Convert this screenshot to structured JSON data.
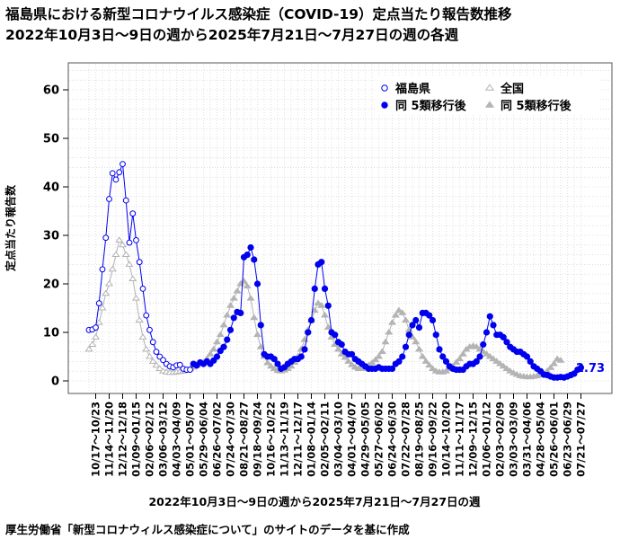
{
  "title_line1": "福島県における新型コロナウイルス感染症（COVID-19）定点当たり報告数推移",
  "title_line2": "2022年10月3日～9日の週から2025年7月21日～7月27日の週の各週",
  "source": "厚生労働省「新型コロナウィルス感染症について」のサイトのデータを基に作成",
  "colors": {
    "fukushima": "#0000ee",
    "national": "#b4b4b4",
    "grid": "#cccccc",
    "frame": "#555555"
  },
  "chart_data": {
    "type": "line",
    "title": "",
    "xlabel": "2022年10月3日～9日の週から2025年7月21日～7月27日の週",
    "ylabel": "定点当たり報告数",
    "ylim": [
      0,
      65
    ],
    "yticks": [
      0,
      10,
      20,
      30,
      40,
      50,
      60
    ],
    "grid": true,
    "legend_position": "top-right",
    "legend": [
      {
        "label": "福島県",
        "marker": "open-circle",
        "color": "#0000ee"
      },
      {
        "label": "全国",
        "marker": "open-triangle",
        "color": "#b4b4b4"
      },
      {
        "label": "同 5類移行後",
        "marker": "filled-circle",
        "color": "#0000ee"
      },
      {
        "label": "同 5類移行後",
        "marker": "filled-triangle",
        "color": "#b4b4b4"
      }
    ],
    "x_tick_labels": [
      "10/17～10/23",
      "11/14～11/20",
      "12/12～12/18",
      "01/09～01/15",
      "02/06～02/12",
      "03/06～03/12",
      "04/03～04/09",
      "05/01～05/07",
      "05/29～06/04",
      "06/26～07/02",
      "07/24～07/30",
      "08/21～08/27",
      "09/18～09/24",
      "10/16～10/22",
      "11/13～11/19",
      "12/11～12/17",
      "01/08～01/14",
      "02/05～02/11",
      "03/04～03/10",
      "04/01～04/07",
      "04/29～05/05",
      "05/27～06/02",
      "06/24～06/30",
      "07/22～07/28",
      "08/19～08/25",
      "09/16～09/22",
      "10/14～10/20",
      "11/11～11/17",
      "12/09～12/15",
      "01/06～01/12",
      "02/03～02/09",
      "03/03～03/09",
      "03/31～04/06",
      "04/28～05/04",
      "05/26～06/01",
      "06/23～06/29",
      "07/21～07/27"
    ],
    "post5_start_index": 31,
    "last_value_label": "2.73",
    "series": [
      {
        "name": "福島県",
        "values": [
          10.5,
          10.6,
          11.0,
          16.0,
          23.0,
          29.5,
          37.5,
          42.8,
          41.5,
          43.0,
          44.7,
          37.2,
          28.5,
          34.5,
          29.0,
          24.5,
          19.0,
          13.5,
          10.5,
          8.0,
          6.0,
          5.0,
          4.3,
          3.5,
          3.0,
          2.8,
          3.2,
          3.3,
          2.5,
          2.3,
          2.3,
          3.5,
          3.2,
          3.8,
          3.5,
          4.0,
          3.5,
          4.2,
          5.0,
          6.2,
          7.0,
          8.5,
          10.5,
          13.0,
          14.2,
          14.0,
          25.5,
          26.0,
          27.5,
          25.0,
          20.0,
          11.5,
          5.5,
          5.0,
          5.0,
          4.5,
          3.5,
          2.5,
          2.8,
          3.5,
          4.0,
          4.5,
          4.5,
          5.0,
          6.5,
          10.0,
          12.5,
          19.0,
          24.0,
          24.5,
          19.0,
          15.5,
          10.0,
          9.5,
          8.0,
          7.5,
          6.0,
          5.5,
          5.5,
          4.5,
          4.0,
          3.5,
          3.0,
          2.5,
          2.5,
          2.5,
          2.8,
          2.5,
          2.5,
          2.5,
          2.5,
          3.5,
          4.0,
          5.0,
          7.0,
          9.5,
          11.5,
          12.5,
          11.0,
          14.0,
          14.0,
          13.5,
          12.5,
          9.5,
          6.5,
          5.0,
          4.0,
          3.0,
          2.5,
          2.3,
          2.3,
          2.3,
          3.0,
          3.5,
          3.5,
          4.0,
          5.0,
          7.5,
          10.0,
          13.3,
          11.5,
          9.5,
          9.5,
          9.0,
          8.0,
          7.0,
          6.5,
          6.0,
          6.0,
          5.5,
          5.0,
          4.0,
          3.0,
          2.5,
          2.0,
          1.3,
          1.2,
          0.9,
          0.7,
          0.7,
          0.8,
          0.7,
          0.9,
          1.2,
          1.5,
          2.3,
          2.73
        ]
      },
      {
        "name": "全国",
        "values": [
          6.5,
          7.5,
          9.0,
          12.0,
          15.0,
          18.0,
          20.0,
          23.0,
          26.0,
          29.0,
          28.0,
          26.0,
          24.0,
          21.0,
          17.0,
          12.5,
          9.0,
          6.5,
          5.0,
          4.0,
          3.2,
          2.5,
          2.0,
          1.8,
          1.7,
          1.7,
          1.8,
          1.9,
          2.0,
          2.2,
          2.5,
          2.8,
          3.2,
          3.5,
          3.8,
          4.5,
          5.5,
          6.5,
          8.0,
          9.5,
          11.5,
          13.5,
          15.5,
          17.0,
          18.5,
          20.0,
          20.5,
          19.5,
          17.0,
          13.0,
          9.5,
          7.0,
          5.0,
          3.7,
          3.0,
          2.5,
          2.1,
          2.0,
          2.2,
          2.5,
          3.0,
          3.8,
          5.0,
          6.5,
          8.5,
          10.5,
          12.5,
          14.5,
          16.0,
          15.5,
          13.5,
          11.0,
          9.0,
          7.5,
          6.5,
          5.5,
          4.8,
          4.0,
          3.3,
          2.8,
          2.5,
          2.5,
          2.8,
          3.2,
          3.7,
          4.3,
          5.0,
          6.0,
          8.0,
          10.0,
          12.0,
          13.5,
          14.5,
          14.0,
          12.5,
          10.5,
          9.0,
          8.0,
          6.5,
          5.0,
          4.0,
          3.2,
          2.5,
          2.0,
          1.8,
          1.8,
          2.0,
          2.5,
          3.0,
          3.8,
          4.5,
          5.5,
          6.5,
          7.0,
          7.2,
          7.0,
          6.5,
          6.0,
          5.5,
          5.0,
          4.5,
          4.0,
          3.5,
          3.0,
          2.5,
          2.0,
          1.6,
          1.3,
          1.0,
          0.9,
          0.8,
          0.8,
          0.9,
          1.0,
          1.2,
          1.5,
          2.0,
          2.7,
          3.5,
          4.5,
          4.2
        ]
      }
    ]
  }
}
